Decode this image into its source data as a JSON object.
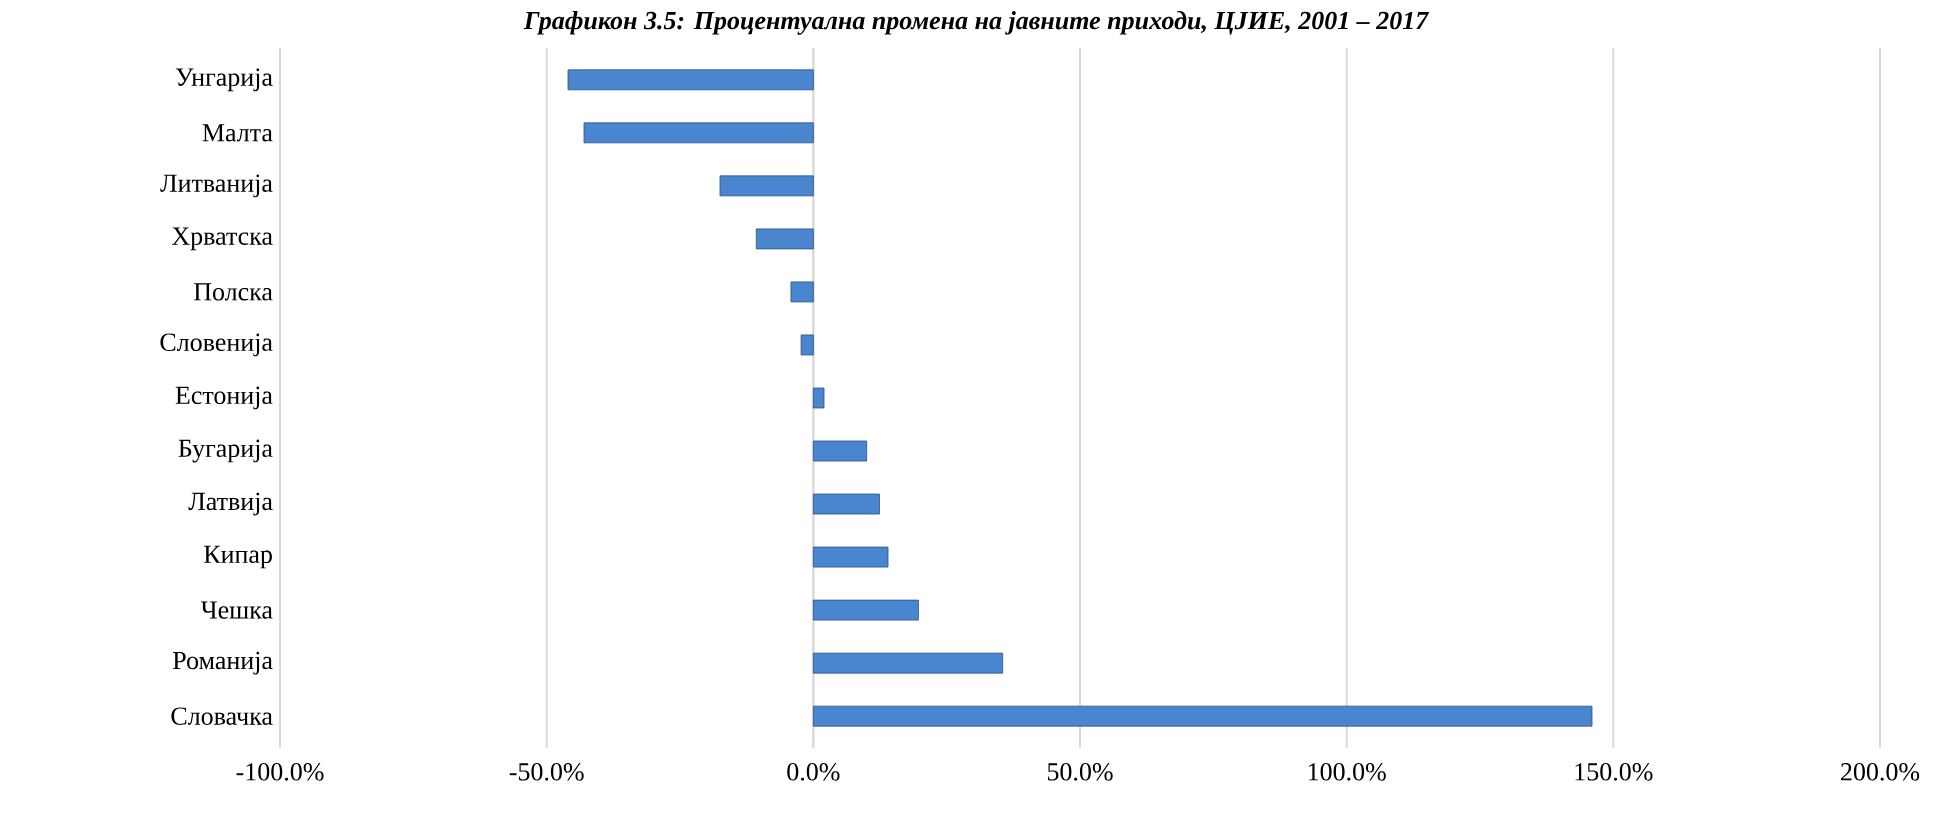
{
  "chart_data": {
    "type": "bar",
    "orientation": "horizontal",
    "title": "Графикон 3.5: Процентуална промена на јавните приходи, ЦЈИЕ, 2001 – 2017",
    "categories": [
      "Унгарија",
      "Малта",
      "Литванија",
      "Хрватска",
      "Полска",
      "Словенија",
      "Естонија",
      "Бугарија",
      "Латвија",
      "Кипар",
      "Чешка",
      "Романија",
      "Словачка"
    ],
    "values": [
      -46,
      -43,
      -17.5,
      -10.7,
      -4.2,
      -2.3,
      2,
      10,
      12.4,
      14,
      19.7,
      35.5,
      146
    ],
    "color": "#4a86cf",
    "xlim": [
      -100,
      200
    ],
    "xticks": [
      {
        "value": -100,
        "label": "-100.0%"
      },
      {
        "value": -50,
        "label": "-50.0%"
      },
      {
        "value": 0,
        "label": "0.0%"
      },
      {
        "value": 50,
        "label": "50.0%"
      },
      {
        "value": 100,
        "label": "100.0%"
      },
      {
        "value": 150,
        "label": "150.0%"
      },
      {
        "value": 200,
        "label": "200.0%"
      }
    ],
    "grid": "x"
  }
}
